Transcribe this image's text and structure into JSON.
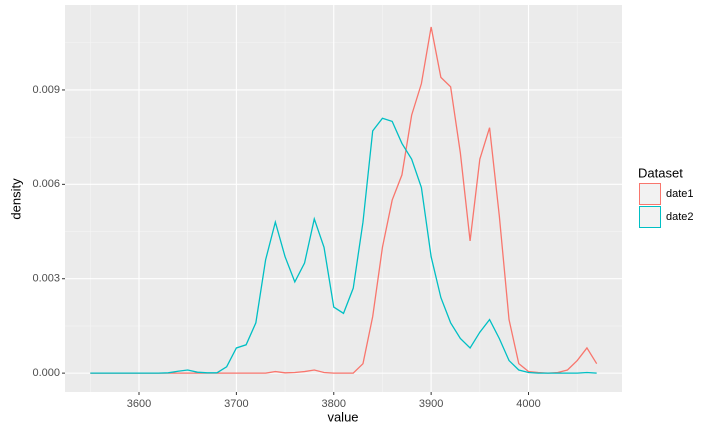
{
  "chart_data": {
    "type": "line",
    "x_label": "value",
    "y_label": "density",
    "legend_title": "Dataset",
    "x": [
      3550,
      3560,
      3570,
      3580,
      3590,
      3600,
      3610,
      3620,
      3630,
      3640,
      3650,
      3660,
      3670,
      3680,
      3690,
      3700,
      3710,
      3720,
      3730,
      3740,
      3750,
      3760,
      3770,
      3780,
      3790,
      3800,
      3810,
      3820,
      3830,
      3840,
      3850,
      3860,
      3870,
      3880,
      3890,
      3900,
      3910,
      3920,
      3930,
      3940,
      3950,
      3960,
      3970,
      3980,
      3990,
      4000,
      4010,
      4020,
      4030,
      4040,
      4050,
      4060,
      4070
    ],
    "series": [
      {
        "name": "date1",
        "color": "#f8766d",
        "values": [
          0,
          0,
          0,
          0,
          0,
          0,
          0,
          0,
          0,
          0,
          0,
          0,
          0,
          0,
          0,
          0,
          0,
          0,
          0,
          5e-05,
          1e-05,
          2e-05,
          5e-05,
          0.0001,
          2e-05,
          0,
          0,
          0,
          0.0003,
          0.0018,
          0.004,
          0.0055,
          0.0063,
          0.0082,
          0.0092,
          0.011,
          0.0094,
          0.0091,
          0.007,
          0.0042,
          0.0068,
          0.0078,
          0.005,
          0.0017,
          0.0003,
          5e-05,
          2e-05,
          0,
          2e-05,
          0.0001,
          0.0004,
          0.0008,
          0.0003
        ]
      },
      {
        "name": "date2",
        "color": "#00bfc4",
        "values": [
          0,
          0,
          0,
          0,
          0,
          0,
          0,
          0,
          1e-05,
          6e-05,
          0.0001,
          3e-05,
          1e-05,
          1e-05,
          0.0002,
          0.0008,
          0.0009,
          0.0016,
          0.0036,
          0.0048,
          0.0037,
          0.0029,
          0.0035,
          0.0049,
          0.004,
          0.0021,
          0.0019,
          0.0027,
          0.0048,
          0.0077,
          0.0081,
          0.008,
          0.0073,
          0.0068,
          0.0059,
          0.0037,
          0.0024,
          0.0016,
          0.0011,
          0.0008,
          0.0013,
          0.0017,
          0.0011,
          0.0004,
          0.0001,
          2e-05,
          0,
          0,
          0,
          0,
          0,
          2e-05,
          0
        ]
      }
    ],
    "xlim": [
      3524,
      4096
    ],
    "xticks": [
      3600,
      3700,
      3800,
      3900,
      4000
    ],
    "ylim": [
      -0.0006,
      0.0117
    ],
    "yticks": [
      {
        "value": 0,
        "label": "0.000"
      },
      {
        "value": 0.003,
        "label": "0.003"
      },
      {
        "value": 0.006,
        "label": "0.006"
      },
      {
        "value": 0.009,
        "label": "0.009"
      }
    ],
    "grid": true,
    "legend": "right"
  }
}
